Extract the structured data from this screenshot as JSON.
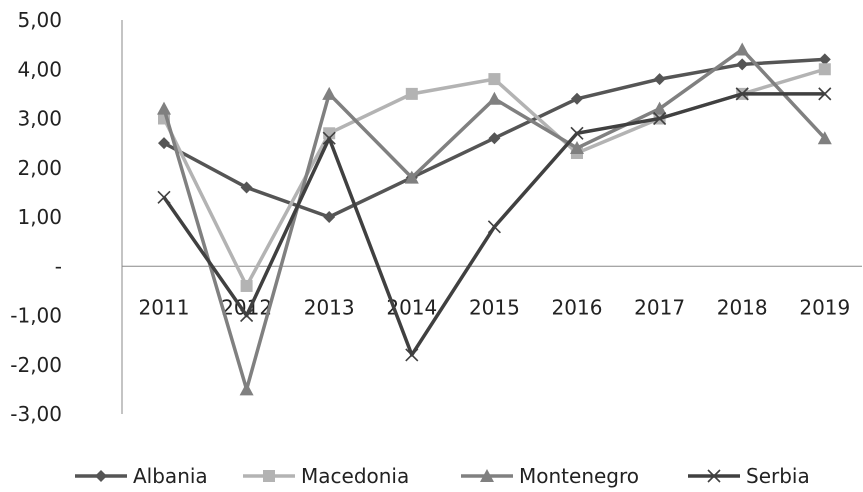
{
  "chart_data": {
    "type": "line",
    "title": "",
    "xlabel": "",
    "ylabel": "",
    "ylim": [
      -3,
      5
    ],
    "grid": false,
    "legend": "bottom",
    "categories": [
      "2011",
      "2012",
      "2013",
      "2014",
      "2015",
      "2016",
      "2017",
      "2018",
      "2019"
    ],
    "y_ticks": [
      {
        "value": 5,
        "label": "5,00"
      },
      {
        "value": 4,
        "label": "4,00"
      },
      {
        "value": 3,
        "label": "3,00"
      },
      {
        "value": 2,
        "label": "2,00"
      },
      {
        "value": 1,
        "label": "1,00"
      },
      {
        "value": 0,
        "label": "-"
      },
      {
        "value": -1,
        "label": "-1,00"
      },
      {
        "value": -2,
        "label": "-2,00"
      },
      {
        "value": -3,
        "label": "-3,00"
      }
    ],
    "series": [
      {
        "name": "Albania",
        "color": "#555555",
        "marker": "diamond",
        "values": [
          2.5,
          1.6,
          1.0,
          1.8,
          2.6,
          3.4,
          3.8,
          4.1,
          4.2
        ]
      },
      {
        "name": "Macedonia",
        "color": "#b3b3b3",
        "marker": "square",
        "values": [
          3.0,
          -0.4,
          2.7,
          3.5,
          3.8,
          2.3,
          3.0,
          3.5,
          4.0
        ]
      },
      {
        "name": "Montenegro",
        "color": "#808080",
        "marker": "triangle",
        "values": [
          3.2,
          -2.5,
          3.5,
          1.8,
          3.4,
          2.4,
          3.2,
          4.4,
          2.6
        ]
      },
      {
        "name": "Serbia",
        "color": "#404040",
        "marker": "x",
        "values": [
          1.4,
          -1.0,
          2.6,
          -1.8,
          0.8,
          2.7,
          3.0,
          3.5,
          3.5
        ]
      }
    ]
  }
}
